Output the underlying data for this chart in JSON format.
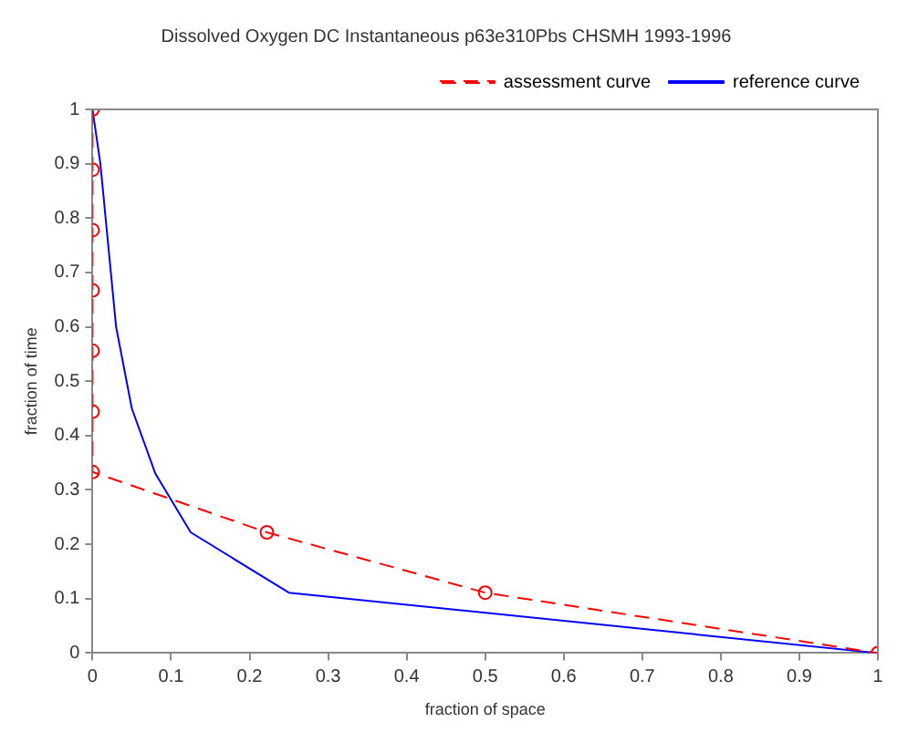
{
  "chart_data": {
    "type": "line",
    "title": "Dissolved Oxygen DC Instantaneous p63e310Pbs CHSMH 1993-1996",
    "xlabel": "fraction of space",
    "ylabel": "fraction of time",
    "xlim": [
      0,
      1
    ],
    "ylim": [
      0,
      1
    ],
    "xticks": [
      0,
      0.1,
      0.2,
      0.3,
      0.4,
      0.5,
      0.6,
      0.7,
      0.8,
      0.9,
      1
    ],
    "yticks": [
      0,
      0.1,
      0.2,
      0.3,
      0.4,
      0.5,
      0.6,
      0.7,
      0.8,
      0.9,
      1
    ],
    "grid": false,
    "legend": "top right",
    "series": [
      {
        "name": "assessment curve",
        "color": "#ff0000",
        "marker": "circle",
        "line_style": "dashed",
        "x": [
          0,
          0,
          0,
          0,
          0,
          0,
          0,
          0.222,
          0.5,
          1
        ],
        "values": [
          1,
          0.889,
          0.778,
          0.667,
          0.556,
          0.444,
          0.333,
          0.222,
          0.111,
          0
        ]
      },
      {
        "name": "reference curve",
        "color": "#0000ff",
        "marker": "none",
        "line_style": "solid",
        "x": [
          0,
          0.01,
          0.02,
          0.03,
          0.05,
          0.08,
          0.125,
          0.25,
          1
        ],
        "values": [
          1,
          0.9,
          0.75,
          0.6,
          0.45,
          0.33,
          0.222,
          0.111,
          0
        ]
      }
    ]
  }
}
